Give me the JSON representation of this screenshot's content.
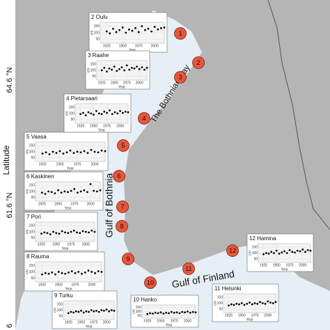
{
  "axis": {
    "title": "Latitude",
    "ticks": [
      "64.6 °N",
      "61.6 °N",
      "6"
    ]
  },
  "regions": [
    "The Bothnian Bay",
    "Gulf of Bothnia",
    "Gulf of Finland"
  ],
  "inset_axes": {
    "xlabel": "Year",
    "ylabel": "cm",
    "xlim": [
      1915,
      2015
    ],
    "ylim": [
      20,
      180
    ],
    "xticks": [
      1925,
      1950,
      1975,
      2000
    ],
    "yticks": [
      50,
      100,
      150
    ],
    "years": [
      1925,
      1930,
      1935,
      1940,
      1945,
      1950,
      1955,
      1960,
      1965,
      1970,
      1975,
      1980,
      1985,
      1990,
      1995,
      2000,
      2005,
      2010,
      2015
    ]
  },
  "stations": [
    {
      "label": "2 Oulu",
      "values": [
        110,
        95,
        130,
        105,
        120,
        140,
        100,
        125,
        115,
        135,
        105,
        150,
        120,
        130,
        110,
        145,
        125,
        135,
        140
      ]
    },
    {
      "label": "3 Raahe",
      "values": [
        100,
        120,
        90,
        115,
        105,
        130,
        95,
        110,
        125,
        100,
        140,
        105,
        120,
        115,
        130,
        110,
        125,
        105,
        120
      ]
    },
    {
      "label": "4 Pietarsaari",
      "values": [
        95,
        105,
        85,
        110,
        100,
        90,
        120,
        100,
        95,
        115,
        105,
        125,
        95,
        110,
        100,
        120,
        105,
        115,
        110
      ]
    },
    {
      "label": "5 Vaasa",
      "values": [
        85,
        95,
        80,
        100,
        90,
        105,
        85,
        95,
        110,
        90,
        100,
        95,
        105,
        90,
        115,
        100,
        95,
        110,
        105
      ]
    },
    {
      "label": "6 Kaskinen",
      "values": [
        90,
        80,
        100,
        95,
        85,
        110,
        90,
        100,
        95,
        105,
        120,
        90,
        100,
        110,
        95,
        160,
        105,
        100,
        110
      ]
    },
    {
      "label": "7 Pori",
      "values": [
        85,
        95,
        90,
        80,
        100,
        90,
        85,
        105,
        95,
        90,
        100,
        110,
        95,
        90,
        105,
        100,
        95,
        110,
        100
      ]
    },
    {
      "label": "8 Rauma",
      "values": [
        80,
        90,
        85,
        95,
        80,
        100,
        90,
        85,
        95,
        105,
        90,
        100,
        85,
        95,
        110,
        100,
        90,
        105,
        100
      ]
    },
    {
      "label": "9 Turku",
      "values": [
        75,
        85,
        80,
        90,
        85,
        95,
        80,
        90,
        85,
        100,
        90,
        95,
        85,
        100,
        95,
        105,
        90,
        100,
        95
      ]
    },
    {
      "label": "10 Hanko",
      "values": [
        70,
        80,
        75,
        85,
        80,
        90,
        75,
        85,
        80,
        95,
        85,
        90,
        80,
        95,
        90,
        100,
        85,
        95,
        90
      ]
    },
    {
      "label": "11 Helsinki",
      "values": [
        80,
        90,
        85,
        95,
        90,
        100,
        85,
        95,
        105,
        90,
        100,
        95,
        110,
        100,
        95,
        115,
        105,
        100,
        110
      ]
    },
    {
      "label": "12 Hamina",
      "values": [
        90,
        100,
        95,
        110,
        100,
        120,
        95,
        105,
        115,
        100,
        125,
        110,
        105,
        120,
        115,
        130,
        110,
        125,
        120
      ]
    }
  ],
  "markers": [
    1,
    2,
    3,
    4,
    5,
    6,
    7,
    8,
    9,
    10,
    11,
    12
  ]
}
